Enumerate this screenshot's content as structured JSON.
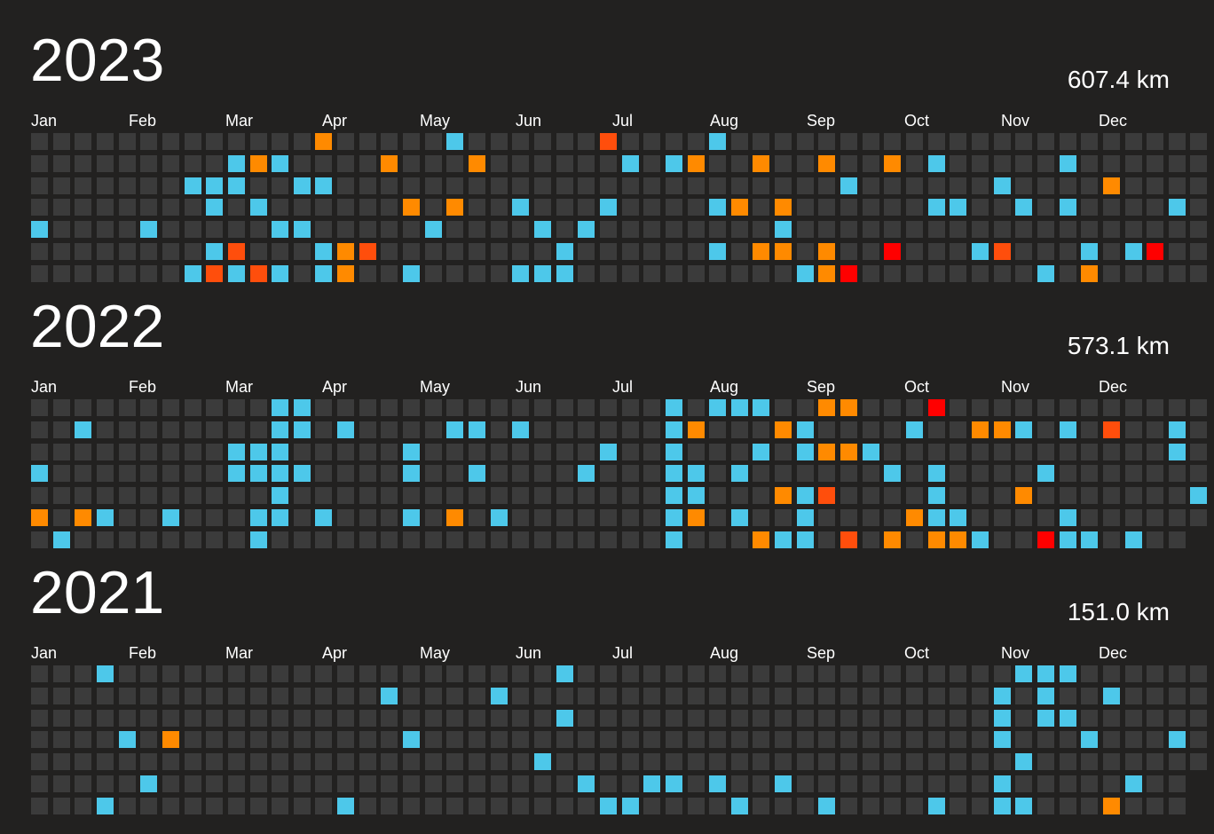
{
  "colors": {
    "background": "#222120",
    "empty": "#3b3b3b",
    "b": "#4dc8ea",
    "o": "#ff8a00",
    "d": "#ff4e0c",
    "r": "#ff0000"
  },
  "months": [
    "Jan",
    "Feb",
    "Mar",
    "Apr",
    "May",
    "Jun",
    "Jul",
    "Aug",
    "Sep",
    "Oct",
    "Nov",
    "Dec"
  ],
  "years": [
    {
      "year": "2023",
      "total": "607.4 km",
      "first_active_row": 0,
      "num_weeks": 53,
      "last_week_days": 7,
      "activities": [
        [
          13,
          0,
          "o"
        ],
        [
          19,
          0,
          "b"
        ],
        [
          26,
          0,
          "d"
        ],
        [
          31,
          0,
          "b"
        ],
        [
          9,
          1,
          "b"
        ],
        [
          10,
          1,
          "o"
        ],
        [
          11,
          1,
          "b"
        ],
        [
          16,
          1,
          "o"
        ],
        [
          20,
          1,
          "o"
        ],
        [
          27,
          1,
          "b"
        ],
        [
          29,
          1,
          "b"
        ],
        [
          30,
          1,
          "o"
        ],
        [
          33,
          1,
          "o"
        ],
        [
          36,
          1,
          "o"
        ],
        [
          39,
          1,
          "o"
        ],
        [
          41,
          1,
          "b"
        ],
        [
          47,
          1,
          "b"
        ],
        [
          7,
          2,
          "b"
        ],
        [
          8,
          2,
          "b"
        ],
        [
          9,
          2,
          "b"
        ],
        [
          12,
          2,
          "b"
        ],
        [
          13,
          2,
          "b"
        ],
        [
          37,
          2,
          "b"
        ],
        [
          44,
          2,
          "b"
        ],
        [
          49,
          2,
          "o"
        ],
        [
          8,
          3,
          "b"
        ],
        [
          10,
          3,
          "b"
        ],
        [
          17,
          3,
          "o"
        ],
        [
          19,
          3,
          "o"
        ],
        [
          22,
          3,
          "b"
        ],
        [
          26,
          3,
          "b"
        ],
        [
          31,
          3,
          "b"
        ],
        [
          32,
          3,
          "o"
        ],
        [
          34,
          3,
          "o"
        ],
        [
          41,
          3,
          "b"
        ],
        [
          42,
          3,
          "b"
        ],
        [
          45,
          3,
          "b"
        ],
        [
          47,
          3,
          "b"
        ],
        [
          52,
          3,
          "b"
        ],
        [
          0,
          4,
          "b"
        ],
        [
          5,
          4,
          "b"
        ],
        [
          11,
          4,
          "b"
        ],
        [
          12,
          4,
          "b"
        ],
        [
          18,
          4,
          "b"
        ],
        [
          23,
          4,
          "b"
        ],
        [
          25,
          4,
          "b"
        ],
        [
          34,
          4,
          "b"
        ],
        [
          8,
          5,
          "b"
        ],
        [
          9,
          5,
          "d"
        ],
        [
          13,
          5,
          "b"
        ],
        [
          14,
          5,
          "o"
        ],
        [
          15,
          5,
          "d"
        ],
        [
          24,
          5,
          "b"
        ],
        [
          31,
          5,
          "b"
        ],
        [
          33,
          5,
          "o"
        ],
        [
          34,
          5,
          "o"
        ],
        [
          36,
          5,
          "o"
        ],
        [
          39,
          5,
          "r"
        ],
        [
          43,
          5,
          "b"
        ],
        [
          44,
          5,
          "d"
        ],
        [
          48,
          5,
          "b"
        ],
        [
          50,
          5,
          "b"
        ],
        [
          51,
          5,
          "r"
        ],
        [
          7,
          6,
          "b"
        ],
        [
          8,
          6,
          "d"
        ],
        [
          9,
          6,
          "b"
        ],
        [
          10,
          6,
          "d"
        ],
        [
          11,
          6,
          "b"
        ],
        [
          13,
          6,
          "b"
        ],
        [
          14,
          6,
          "o"
        ],
        [
          17,
          6,
          "b"
        ],
        [
          22,
          6,
          "b"
        ],
        [
          23,
          6,
          "b"
        ],
        [
          24,
          6,
          "b"
        ],
        [
          35,
          6,
          "b"
        ],
        [
          36,
          6,
          "o"
        ],
        [
          37,
          6,
          "r"
        ],
        [
          46,
          6,
          "b"
        ],
        [
          48,
          6,
          "o"
        ]
      ]
    },
    {
      "year": "2022",
      "total": "573.1 km",
      "first_active_row": 0,
      "num_weeks": 53,
      "last_week_days": 6,
      "activities": [
        [
          11,
          0,
          "b"
        ],
        [
          12,
          0,
          "b"
        ],
        [
          29,
          0,
          "b"
        ],
        [
          31,
          0,
          "b"
        ],
        [
          32,
          0,
          "b"
        ],
        [
          33,
          0,
          "b"
        ],
        [
          36,
          0,
          "o"
        ],
        [
          37,
          0,
          "o"
        ],
        [
          41,
          0,
          "r"
        ],
        [
          2,
          1,
          "b"
        ],
        [
          11,
          1,
          "b"
        ],
        [
          12,
          1,
          "b"
        ],
        [
          14,
          1,
          "b"
        ],
        [
          19,
          1,
          "b"
        ],
        [
          20,
          1,
          "b"
        ],
        [
          22,
          1,
          "b"
        ],
        [
          29,
          1,
          "b"
        ],
        [
          30,
          1,
          "o"
        ],
        [
          34,
          1,
          "o"
        ],
        [
          35,
          1,
          "b"
        ],
        [
          40,
          1,
          "b"
        ],
        [
          43,
          1,
          "o"
        ],
        [
          44,
          1,
          "o"
        ],
        [
          45,
          1,
          "b"
        ],
        [
          47,
          1,
          "b"
        ],
        [
          49,
          1,
          "d"
        ],
        [
          52,
          1,
          "b"
        ],
        [
          9,
          2,
          "b"
        ],
        [
          10,
          2,
          "b"
        ],
        [
          11,
          2,
          "b"
        ],
        [
          17,
          2,
          "b"
        ],
        [
          26,
          2,
          "b"
        ],
        [
          29,
          2,
          "b"
        ],
        [
          33,
          2,
          "b"
        ],
        [
          35,
          2,
          "b"
        ],
        [
          36,
          2,
          "o"
        ],
        [
          37,
          2,
          "o"
        ],
        [
          38,
          2,
          "b"
        ],
        [
          52,
          2,
          "b"
        ],
        [
          0,
          3,
          "b"
        ],
        [
          9,
          3,
          "b"
        ],
        [
          10,
          3,
          "b"
        ],
        [
          11,
          3,
          "b"
        ],
        [
          12,
          3,
          "b"
        ],
        [
          17,
          3,
          "b"
        ],
        [
          20,
          3,
          "b"
        ],
        [
          25,
          3,
          "b"
        ],
        [
          29,
          3,
          "b"
        ],
        [
          30,
          3,
          "b"
        ],
        [
          32,
          3,
          "b"
        ],
        [
          39,
          3,
          "b"
        ],
        [
          41,
          3,
          "b"
        ],
        [
          46,
          3,
          "b"
        ],
        [
          11,
          4,
          "b"
        ],
        [
          29,
          4,
          "b"
        ],
        [
          30,
          4,
          "b"
        ],
        [
          34,
          4,
          "o"
        ],
        [
          35,
          4,
          "b"
        ],
        [
          36,
          4,
          "d"
        ],
        [
          41,
          4,
          "b"
        ],
        [
          45,
          4,
          "o"
        ],
        [
          53,
          4,
          "b"
        ],
        [
          0,
          5,
          "o"
        ],
        [
          2,
          5,
          "o"
        ],
        [
          3,
          5,
          "b"
        ],
        [
          6,
          5,
          "b"
        ],
        [
          10,
          5,
          "b"
        ],
        [
          11,
          5,
          "b"
        ],
        [
          13,
          5,
          "b"
        ],
        [
          17,
          5,
          "b"
        ],
        [
          19,
          5,
          "o"
        ],
        [
          21,
          5,
          "b"
        ],
        [
          29,
          5,
          "b"
        ],
        [
          30,
          5,
          "o"
        ],
        [
          32,
          5,
          "b"
        ],
        [
          35,
          5,
          "b"
        ],
        [
          40,
          5,
          "o"
        ],
        [
          41,
          5,
          "b"
        ],
        [
          42,
          5,
          "b"
        ],
        [
          47,
          5,
          "b"
        ],
        [
          1,
          6,
          "b"
        ],
        [
          10,
          6,
          "b"
        ],
        [
          29,
          6,
          "b"
        ],
        [
          33,
          6,
          "o"
        ],
        [
          34,
          6,
          "b"
        ],
        [
          35,
          6,
          "b"
        ],
        [
          37,
          6,
          "d"
        ],
        [
          39,
          6,
          "o"
        ],
        [
          41,
          6,
          "o"
        ],
        [
          42,
          6,
          "o"
        ],
        [
          43,
          6,
          "b"
        ],
        [
          46,
          6,
          "r"
        ],
        [
          47,
          6,
          "b"
        ],
        [
          48,
          6,
          "b"
        ],
        [
          50,
          6,
          "b"
        ]
      ]
    },
    {
      "year": "2021",
      "total": "151.0 km",
      "first_active_row": 0,
      "num_weeks": 53,
      "last_week_days": 5,
      "activities": [
        [
          3,
          0,
          "b"
        ],
        [
          24,
          0,
          "b"
        ],
        [
          45,
          0,
          "b"
        ],
        [
          46,
          0,
          "b"
        ],
        [
          47,
          0,
          "b"
        ],
        [
          16,
          1,
          "b"
        ],
        [
          21,
          1,
          "b"
        ],
        [
          44,
          1,
          "b"
        ],
        [
          46,
          1,
          "b"
        ],
        [
          49,
          1,
          "b"
        ],
        [
          24,
          2,
          "b"
        ],
        [
          44,
          2,
          "b"
        ],
        [
          46,
          2,
          "b"
        ],
        [
          47,
          2,
          "b"
        ],
        [
          4,
          3,
          "b"
        ],
        [
          6,
          3,
          "o"
        ],
        [
          17,
          3,
          "b"
        ],
        [
          44,
          3,
          "b"
        ],
        [
          48,
          3,
          "b"
        ],
        [
          52,
          3,
          "b"
        ],
        [
          23,
          4,
          "b"
        ],
        [
          45,
          4,
          "b"
        ],
        [
          5,
          5,
          "b"
        ],
        [
          25,
          5,
          "b"
        ],
        [
          28,
          5,
          "b"
        ],
        [
          29,
          5,
          "b"
        ],
        [
          31,
          5,
          "b"
        ],
        [
          34,
          5,
          "b"
        ],
        [
          44,
          5,
          "b"
        ],
        [
          50,
          5,
          "b"
        ],
        [
          3,
          6,
          "b"
        ],
        [
          14,
          6,
          "b"
        ],
        [
          26,
          6,
          "b"
        ],
        [
          27,
          6,
          "b"
        ],
        [
          32,
          6,
          "b"
        ],
        [
          36,
          6,
          "b"
        ],
        [
          41,
          6,
          "b"
        ],
        [
          44,
          6,
          "b"
        ],
        [
          45,
          6,
          "b"
        ],
        [
          49,
          6,
          "o"
        ]
      ]
    }
  ]
}
